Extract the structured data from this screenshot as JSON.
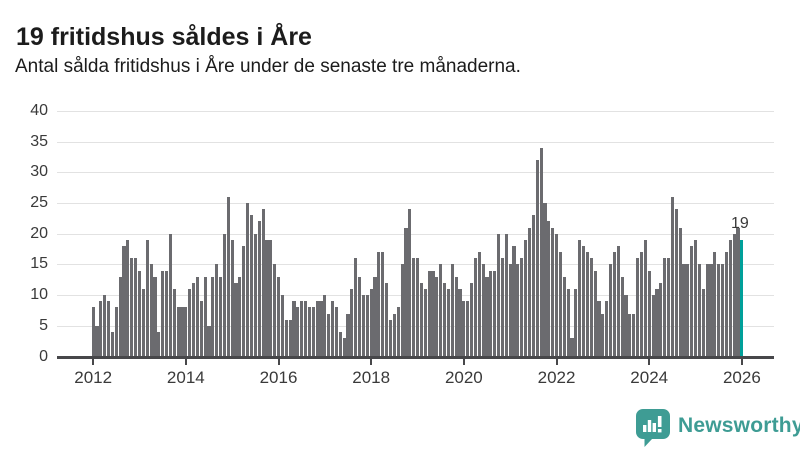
{
  "header": {
    "title": "19 fritidshus såldes i Åre",
    "subtitle": "Antal sålda fritidshus i Åre under de senaste tre månaderna."
  },
  "chart_data": {
    "type": "bar",
    "title": "19 fritidshus såldes i Åre",
    "subtitle": "Antal sålda fritidshus i Åre under de senaste tre månaderna.",
    "x_start": "2012-01",
    "frequency": "monthly",
    "ylim": [
      0,
      40
    ],
    "y_ticks": [
      0,
      5,
      10,
      15,
      20,
      25,
      30,
      35,
      40
    ],
    "x_tick_years": [
      2012,
      2014,
      2016,
      2018,
      2020,
      2022,
      2024,
      2026
    ],
    "grid": true,
    "bar_color": "#6b6b6f",
    "values": [
      8,
      5,
      9,
      10,
      9,
      4,
      8,
      13,
      18,
      19,
      16,
      16,
      14,
      11,
      19,
      15,
      13,
      4,
      14,
      14,
      20,
      11,
      8,
      8,
      8,
      11,
      12,
      13,
      9,
      13,
      5,
      13,
      15,
      13,
      20,
      26,
      19,
      12,
      13,
      18,
      25,
      23,
      20,
      22,
      24,
      19,
      19,
      15,
      13,
      10,
      6,
      6,
      9,
      8,
      9,
      9,
      8,
      8,
      9,
      9,
      10,
      7,
      9,
      8,
      4,
      3,
      7,
      11,
      16,
      13,
      10,
      10,
      11,
      13,
      17,
      17,
      12,
      6,
      7,
      8,
      15,
      21,
      24,
      16,
      16,
      12,
      11,
      14,
      14,
      13,
      15,
      12,
      11,
      15,
      13,
      11,
      9,
      9,
      12,
      16,
      17,
      15,
      13,
      14,
      14,
      20,
      16,
      20,
      15,
      18,
      15,
      16,
      19,
      21,
      23,
      32,
      34,
      25,
      22,
      21,
      20,
      17,
      13,
      11,
      3,
      11,
      19,
      18,
      17,
      16,
      14,
      9,
      7,
      9,
      15,
      17,
      18,
      13,
      10,
      7,
      7,
      16,
      17,
      19,
      14,
      10,
      11,
      12,
      16,
      16,
      26,
      24,
      21,
      15,
      15,
      18,
      19,
      15,
      11,
      15,
      15,
      17,
      15,
      15,
      17,
      19,
      20,
      21,
      19
    ],
    "highlight": {
      "index": 168,
      "value": 19,
      "label": "19",
      "color": "#00a09a"
    }
  },
  "branding": {
    "logo_text": "Newsworthy",
    "logo_icon": "bar-chart-speech-bubble",
    "logo_color": "#3e9c94"
  },
  "colors": {
    "background": "#ffffff",
    "bar": "#6b6b6f",
    "highlight": "#00a09a",
    "grid": "#e2e2e2",
    "axis": "#47474a",
    "text": "#1c1c1c",
    "axis_text": "#3a3a3a"
  }
}
